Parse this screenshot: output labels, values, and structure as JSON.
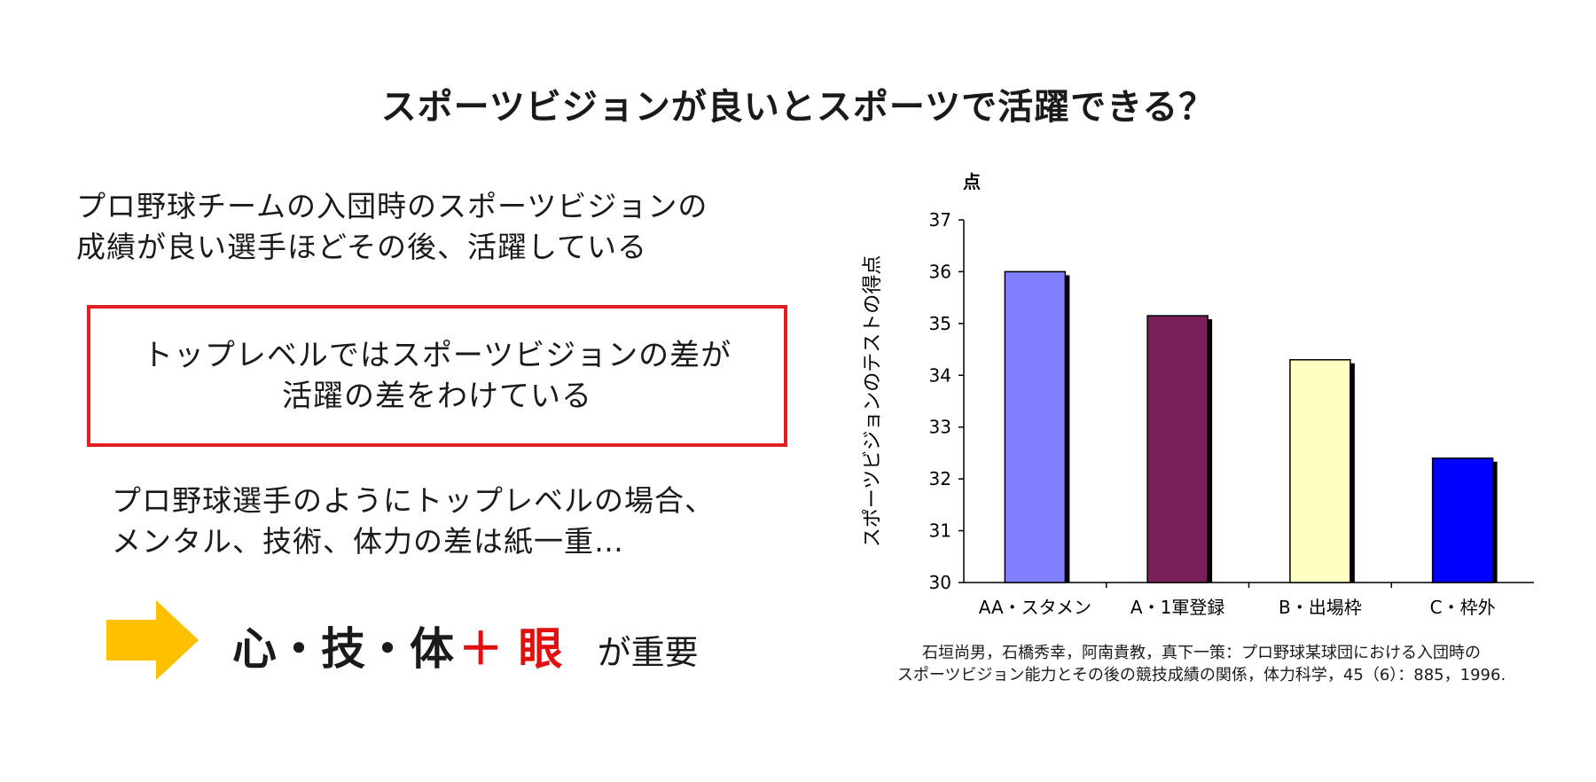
{
  "title": "スポーツビジョンが良いとスポーツで活躍できる？",
  "intro": [
    "プロ野球チームの入団時のスポーツビジョンの",
    "成績が良い選手ほどその後、活躍している"
  ],
  "highlight": [
    "トップレベルではスポーツビジョンの差が",
    "活躍の差をわけている"
  ],
  "note": [
    "プロ野球選手のようにトップレベルの場合、",
    "メンタル、技術、体力の差は紙一重…"
  ],
  "conclusion": {
    "arrow_icon": "right-arrow-icon",
    "arrow_color": "#FFC000",
    "main": "心・技・体",
    "plus_eye": "＋ 眼",
    "suffix": "が重要"
  },
  "chart_data": {
    "type": "bar",
    "title": "",
    "xlabel": "",
    "ylabel": "スポーツビジョンのテストの得点",
    "unit": "点",
    "categories": [
      "AA・スタメン",
      "A・1軍登録",
      "B・出場枠",
      "C・枠外"
    ],
    "values": [
      36.0,
      35.15,
      34.3,
      32.4
    ],
    "colors": [
      "#8080FF",
      "#7A1F58",
      "#FFFFC0",
      "#0000FF"
    ],
    "ylim": [
      30,
      37
    ],
    "yticks": [
      30,
      31,
      32,
      33,
      34,
      35,
      36,
      37
    ],
    "grid": false,
    "legend": "none"
  },
  "citation": [
    "石垣尚男，石橋秀幸，阿南貴教，真下一策：プロ野球某球団における入団時の",
    "スポーツビジョン能力とその後の競技成績の関係，体力科学，45（6）：885，1996."
  ]
}
